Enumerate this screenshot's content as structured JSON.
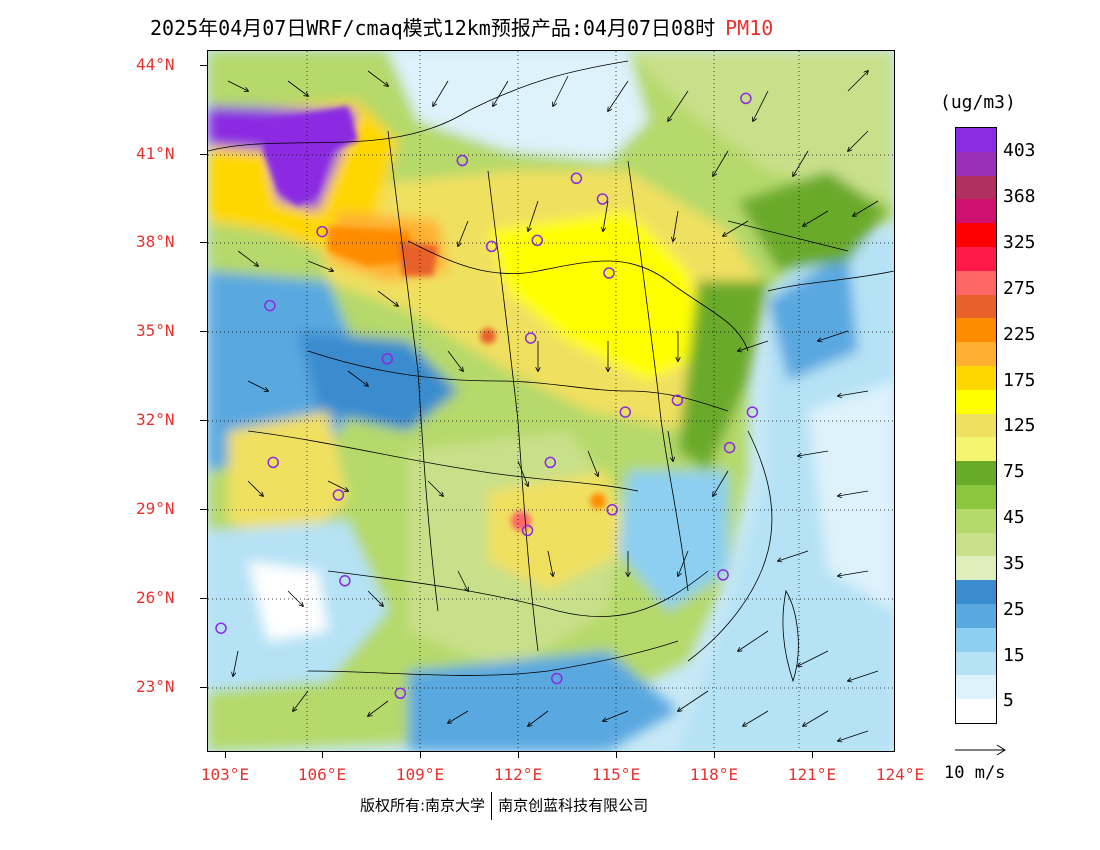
{
  "title": {
    "main": "2025年04月07日WRF/cmaq模式12km预报产品:04月07日08时",
    "pollutant": "PM10"
  },
  "axes": {
    "latitudes": [
      "44°N",
      "41°N",
      "38°N",
      "35°N",
      "32°N",
      "29°N",
      "26°N",
      "23°N"
    ],
    "longitudes": [
      "103°E",
      "106°E",
      "109°E",
      "112°E",
      "115°E",
      "118°E",
      "121°E",
      "124°E"
    ]
  },
  "legend": {
    "unit": "(ug/m3)",
    "labels": [
      "403",
      "368",
      "325",
      "275",
      "225",
      "175",
      "125",
      "75",
      "45",
      "35",
      "25",
      "15",
      "5"
    ],
    "colors": [
      "#8b2be2",
      "#9b2fb8",
      "#b03060",
      "#d01070",
      "#ff0000",
      "#ff1a4a",
      "#ff6666",
      "#e8602a",
      "#ff8c00",
      "#ffb030",
      "#ffd700",
      "#ffff00",
      "#f0e060",
      "#f5f570",
      "#6aaa2a",
      "#8cc63f",
      "#b5d96a",
      "#c9e08a",
      "#dfeebd",
      "#3a8ccf",
      "#5aa8e0",
      "#8ccff0",
      "#b5e2f5",
      "#def2fb",
      "#ffffff"
    ]
  },
  "wind": {
    "scale_label": "10 m/s"
  },
  "copyright": {
    "owner": "版权所有:南京大学",
    "partner": "南京创蓝科技有限公司"
  },
  "cities": [
    {
      "lon": 119.0,
      "lat": 42.9
    },
    {
      "lon": 110.3,
      "lat": 40.8
    },
    {
      "lon": 113.8,
      "lat": 40.2
    },
    {
      "lon": 114.6,
      "lat": 39.5
    },
    {
      "lon": 106.0,
      "lat": 38.4
    },
    {
      "lon": 111.2,
      "lat": 37.9
    },
    {
      "lon": 112.6,
      "lat": 38.1
    },
    {
      "lon": 114.8,
      "lat": 37.0
    },
    {
      "lon": 104.4,
      "lat": 35.9
    },
    {
      "lon": 112.4,
      "lat": 34.8
    },
    {
      "lon": 108.0,
      "lat": 34.1
    },
    {
      "lon": 115.3,
      "lat": 32.3
    },
    {
      "lon": 116.9,
      "lat": 32.7
    },
    {
      "lon": 119.2,
      "lat": 32.3
    },
    {
      "lon": 118.5,
      "lat": 31.1
    },
    {
      "lon": 104.5,
      "lat": 30.6
    },
    {
      "lon": 113.0,
      "lat": 30.6
    },
    {
      "lon": 106.5,
      "lat": 29.5
    },
    {
      "lon": 114.9,
      "lat": 29.0
    },
    {
      "lon": 112.3,
      "lat": 28.3
    },
    {
      "lon": 106.7,
      "lat": 26.6
    },
    {
      "lon": 118.3,
      "lat": 26.8
    },
    {
      "lon": 102.9,
      "lat": 25.0
    },
    {
      "lon": 108.4,
      "lat": 22.8
    },
    {
      "lon": 113.2,
      "lat": 23.3
    }
  ]
}
